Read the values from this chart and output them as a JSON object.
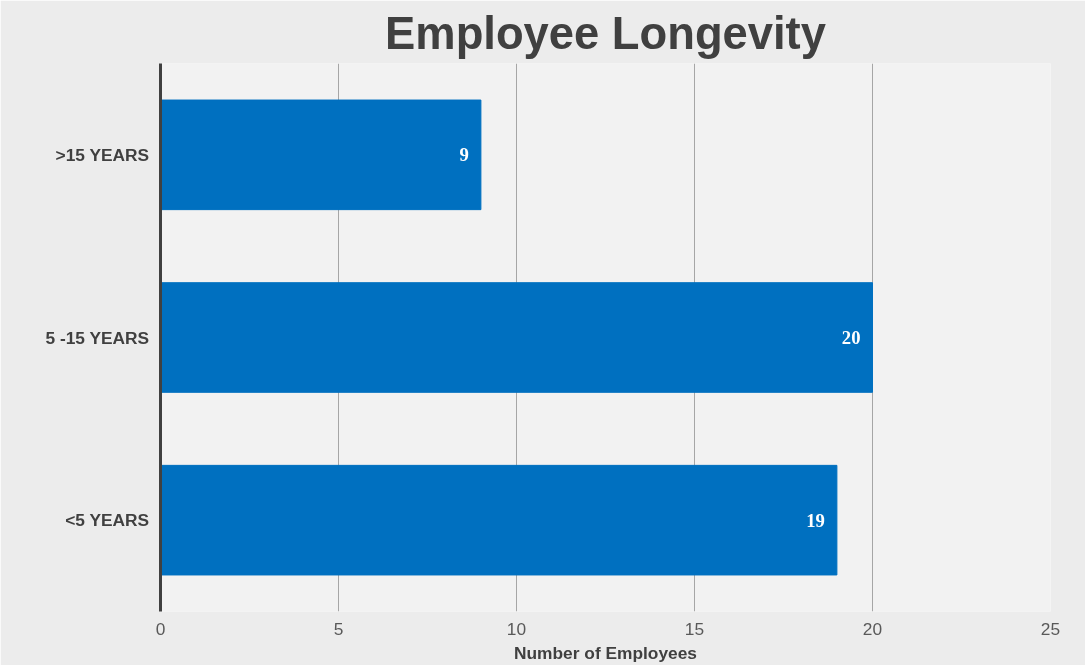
{
  "chart_data": {
    "type": "bar",
    "orientation": "horizontal",
    "title": "Employee Longevity",
    "xlabel": "Number of Employees",
    "categories": [
      ">15 YEARS",
      "5 -15 YEARS",
      "<5 YEARS"
    ],
    "values": [
      9,
      20,
      19
    ],
    "color": "#0070c0",
    "xlim": [
      0,
      25
    ],
    "xticks": [
      0,
      5,
      10,
      15,
      20,
      25
    ],
    "grid": "x",
    "data_labels": true
  }
}
